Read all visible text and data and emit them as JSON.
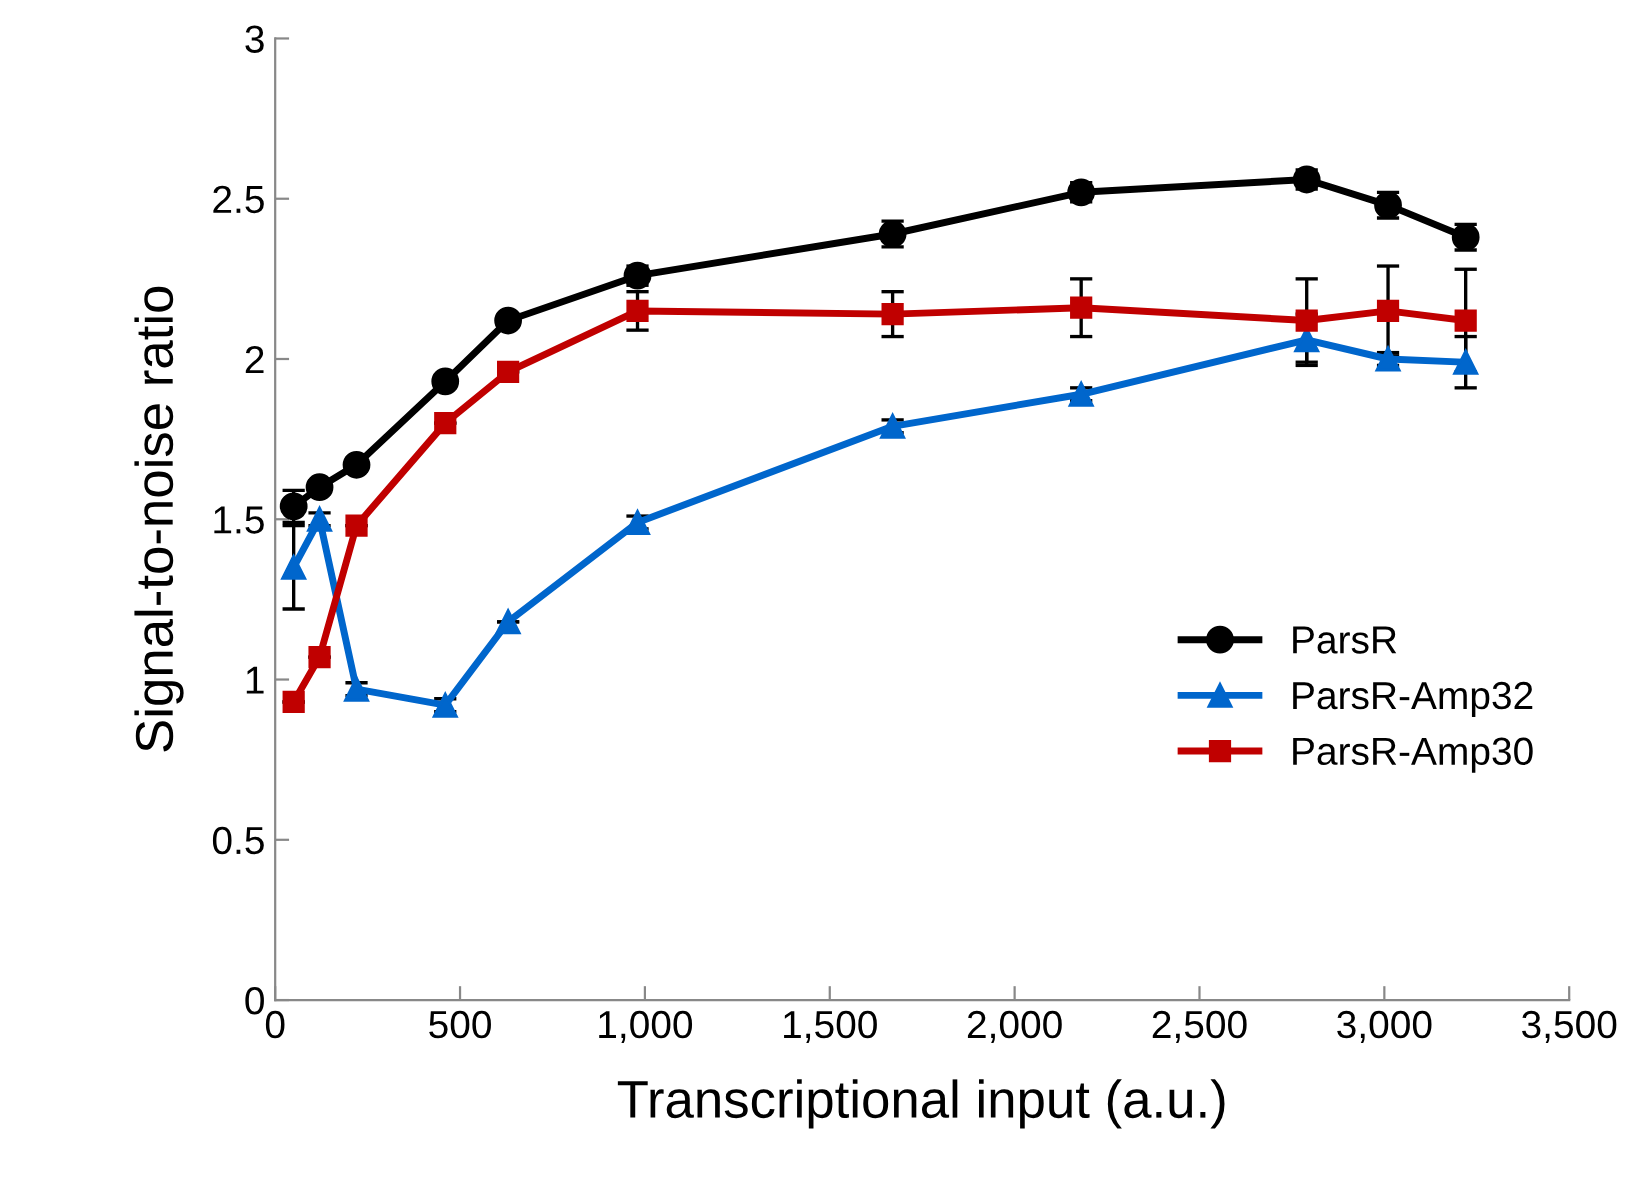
{
  "chart_data": {
    "type": "line",
    "xlabel": "Transcriptional input (a.u.)",
    "ylabel": "Signal-to-noise ratio",
    "x": [
      50,
      120,
      220,
      460,
      630,
      980,
      1670,
      2180,
      2790,
      3010,
      3220
    ],
    "xlim": [
      0,
      3500
    ],
    "ylim": [
      0,
      3
    ],
    "xticks": [
      0,
      500,
      {
        "value": 1000,
        "label": "1,000"
      },
      {
        "value": 1500,
        "label": "1,500"
      },
      {
        "value": 2000,
        "label": "2,000"
      },
      {
        "value": 2500,
        "label": "2,500"
      },
      {
        "value": 3000,
        "label": "3,000"
      },
      {
        "value": 3500,
        "label": "3,500"
      }
    ],
    "yticks": [
      0,
      0.5,
      1,
      1.5,
      2,
      2.5,
      3
    ],
    "grid": false,
    "legend": "bottom right",
    "series": [
      {
        "name": "ParsR",
        "color": "#000000",
        "marker": "circle",
        "values": [
          1.54,
          1.6,
          1.67,
          1.93,
          2.12,
          2.26,
          2.39,
          2.52,
          2.56,
          2.48,
          2.38
        ],
        "errors": [
          0.05,
          0.02,
          0.02,
          0.02,
          0.02,
          0.03,
          0.04,
          0.03,
          0.03,
          0.04,
          0.04
        ]
      },
      {
        "name": "ParsR-Amp32",
        "color": "#0066cc",
        "marker": "triangle",
        "values": [
          1.35,
          1.5,
          0.97,
          0.92,
          1.18,
          1.49,
          1.79,
          1.89,
          2.06,
          2.0,
          1.99
        ],
        "errors": [
          0.13,
          0.02,
          0.02,
          0.02,
          null,
          0.02,
          0.02,
          0.02,
          0.08,
          0.02,
          0.08
        ]
      },
      {
        "name": "ParsR-Amp30",
        "color": "#c00000",
        "marker": "square",
        "values": [
          0.93,
          1.07,
          1.48,
          1.8,
          1.96,
          2.15,
          2.14,
          2.16,
          2.12,
          2.15,
          2.12
        ],
        "errors": [
          null,
          null,
          null,
          null,
          null,
          0.06,
          0.07,
          0.09,
          0.13,
          0.14,
          0.16
        ]
      }
    ]
  }
}
